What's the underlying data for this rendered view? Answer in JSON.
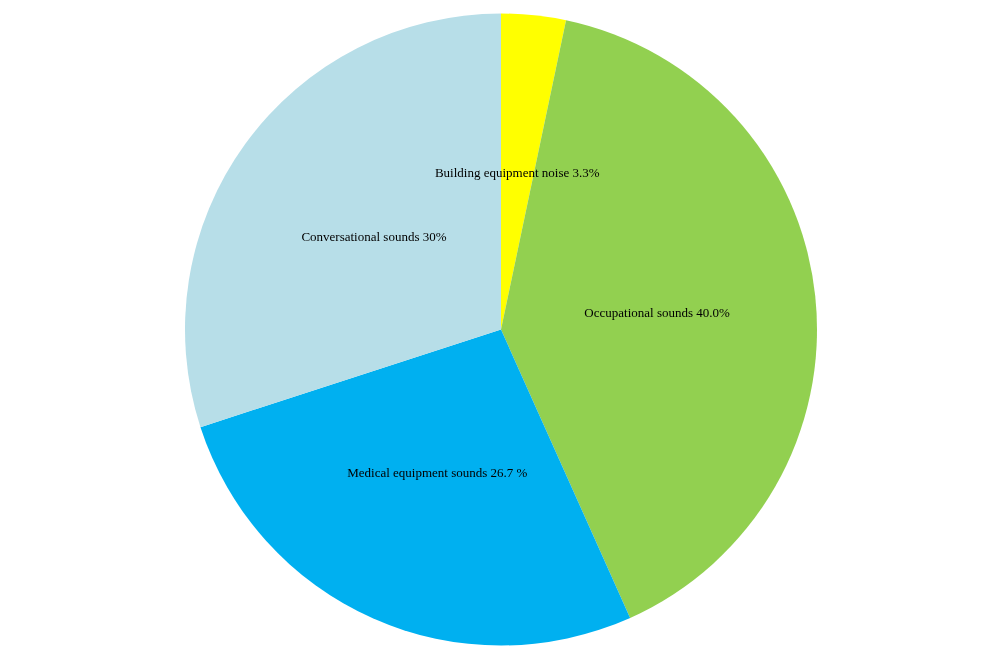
{
  "chart_data": {
    "type": "pie",
    "categories": [
      "Building equipment noise",
      "Occupational sounds",
      "Medical equipment sounds",
      "Conversational sounds"
    ],
    "values": [
      3.3,
      40.0,
      26.7,
      30
    ],
    "value_labels": [
      "3.3%",
      "40.0%",
      "26.7 %",
      "30%"
    ],
    "colors": [
      "#ffff00",
      "#92d050",
      "#00b0f0",
      "#b7dee8"
    ]
  }
}
